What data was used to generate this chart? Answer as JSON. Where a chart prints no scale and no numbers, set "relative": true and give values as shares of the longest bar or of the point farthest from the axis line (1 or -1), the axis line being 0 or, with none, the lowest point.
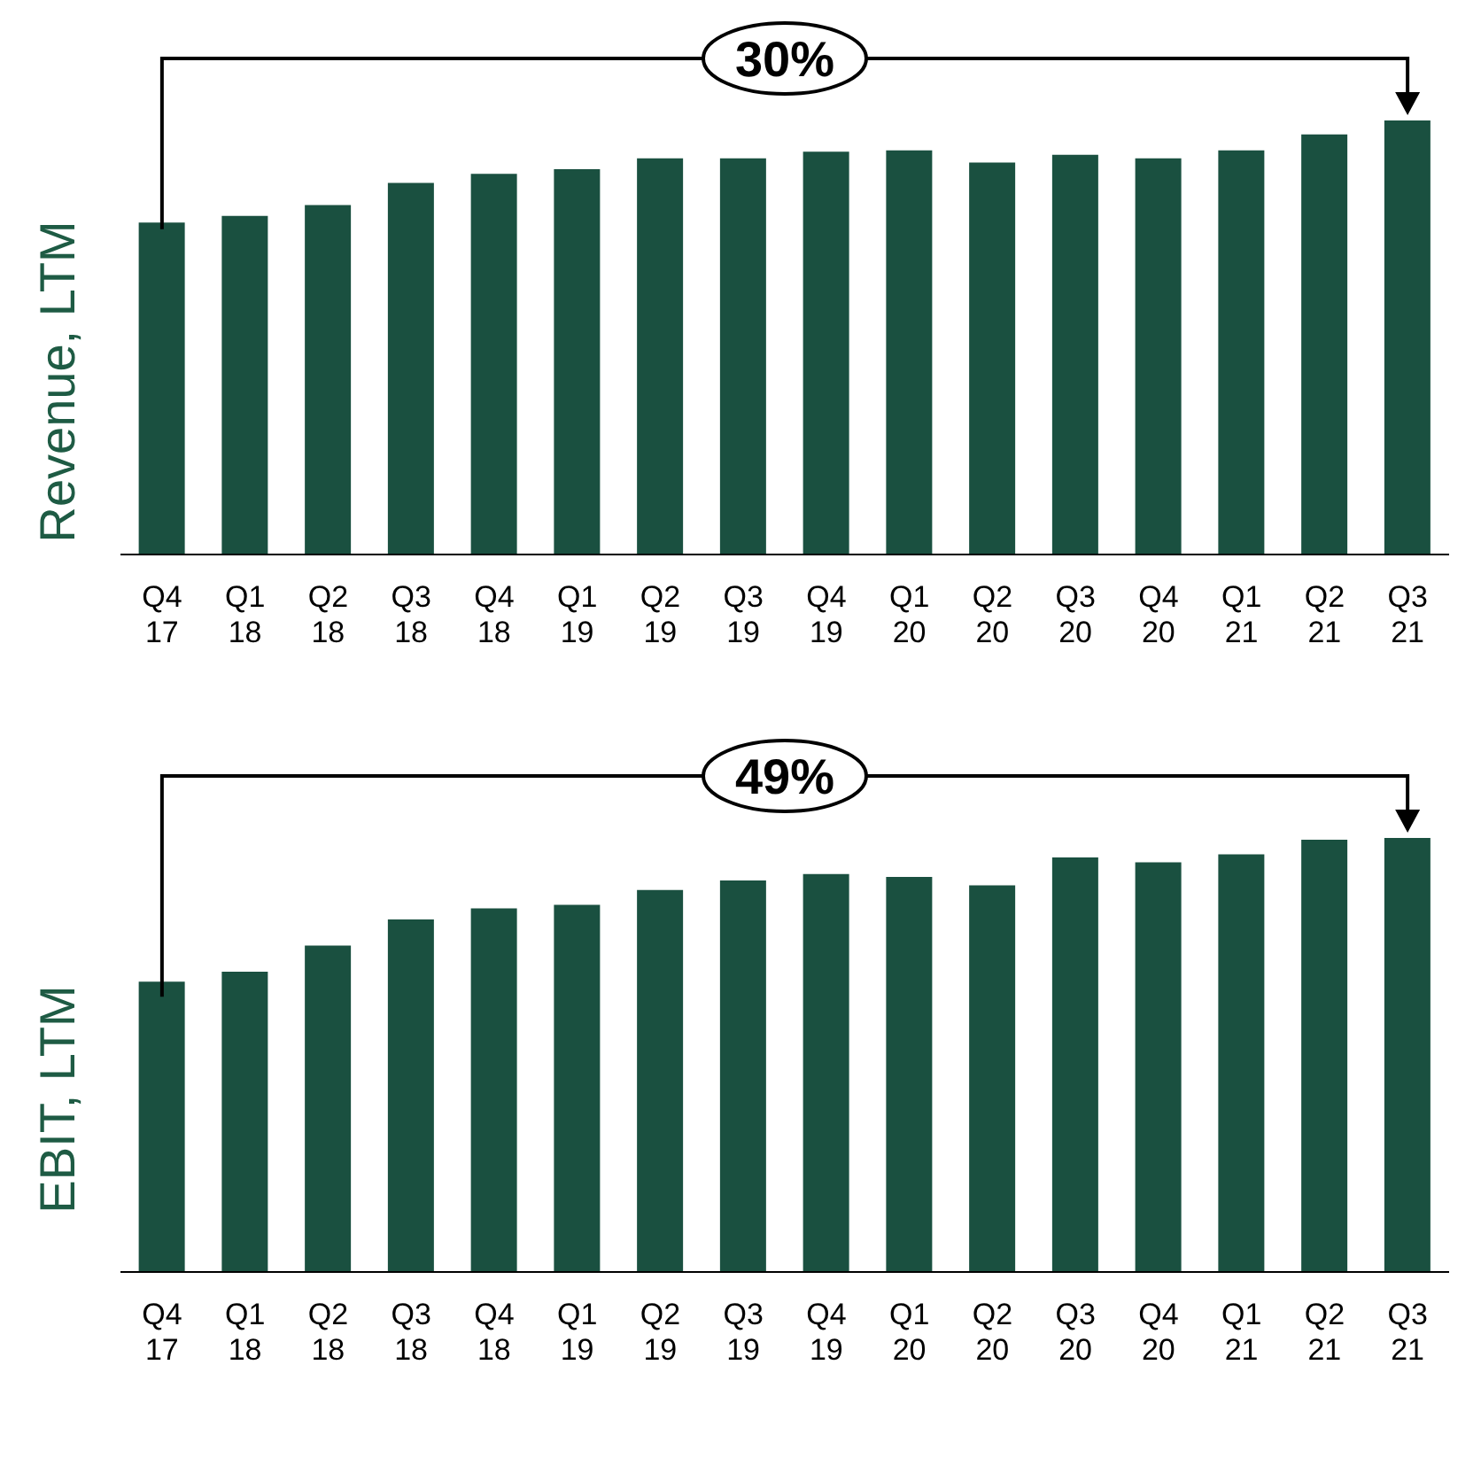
{
  "chart_data": [
    {
      "type": "bar",
      "ylabel": "Revenue, LTM",
      "relative": true,
      "color": "#1a5040",
      "annotations": [
        "30%"
      ],
      "categories": [
        "Q4 17",
        "Q1 18",
        "Q2 18",
        "Q3 18",
        "Q4 18",
        "Q1 19",
        "Q2 19",
        "Q3 19",
        "Q4 19",
        "Q1 20",
        "Q2 20",
        "Q3 20",
        "Q4 20",
        "Q1 21",
        "Q2 21",
        "Q3 21"
      ],
      "values": [
        0.765,
        0.78,
        0.805,
        0.856,
        0.877,
        0.888,
        0.913,
        0.913,
        0.928,
        0.931,
        0.903,
        0.921,
        0.913,
        0.931,
        0.968,
        1
      ]
    },
    {
      "type": "bar",
      "ylabel": "EBIT, LTM",
      "relative": true,
      "color": "#1a5040",
      "annotations": [
        "49%"
      ],
      "categories": [
        "Q4 17",
        "Q1 18",
        "Q2 18",
        "Q3 18",
        "Q4 18",
        "Q1 19",
        "Q2 19",
        "Q3 19",
        "Q4 19",
        "Q1 20",
        "Q2 20",
        "Q3 20",
        "Q4 20",
        "Q1 21",
        "Q2 21",
        "Q3 21"
      ],
      "values": [
        0.669,
        0.692,
        0.752,
        0.812,
        0.838,
        0.846,
        0.88,
        0.902,
        0.917,
        0.91,
        0.891,
        0.955,
        0.944,
        0.962,
        0.996,
        1
      ]
    }
  ]
}
